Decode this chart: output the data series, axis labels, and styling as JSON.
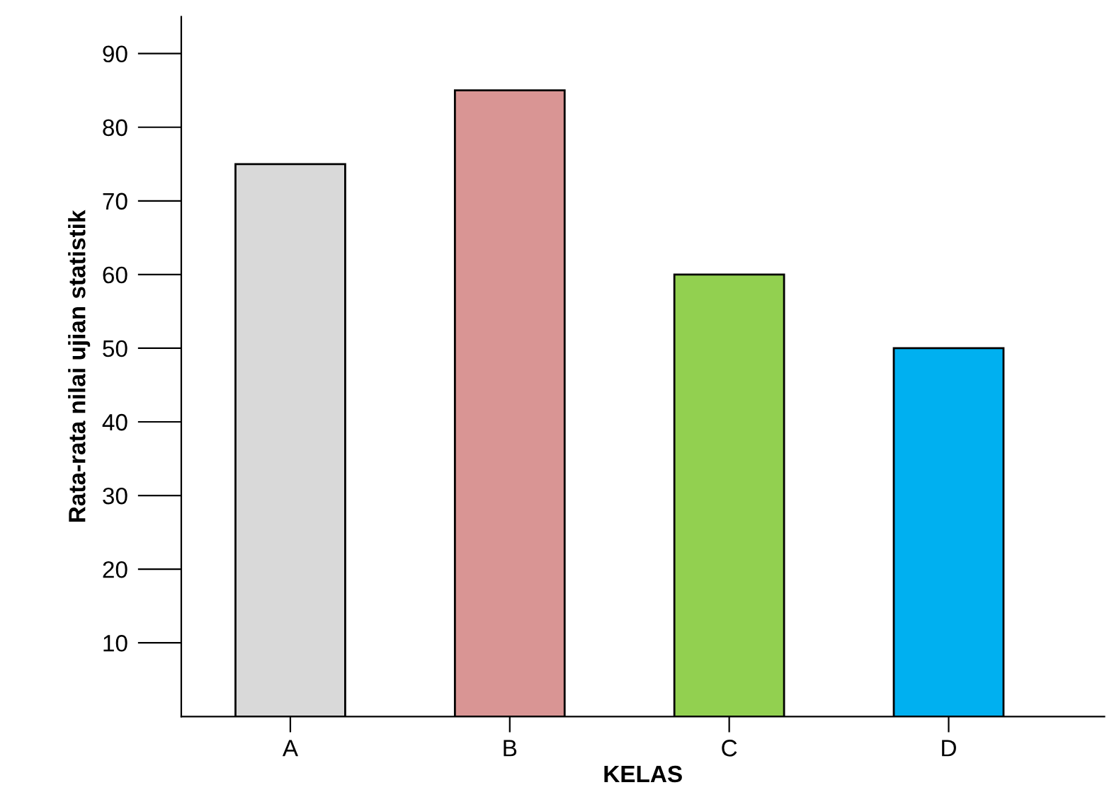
{
  "chart_data": {
    "type": "bar",
    "xlabel": "KELAS",
    "ylabel": "Rata-rata nilai ujian statistik",
    "categories": [
      "A",
      "B",
      "C",
      "D"
    ],
    "values": [
      75,
      85,
      60,
      50
    ],
    "colors": [
      "#d9d9d9",
      "#d99594",
      "#92d050",
      "#00b0f0"
    ],
    "ylim": [
      0,
      95
    ],
    "yticks": [
      10,
      20,
      30,
      40,
      50,
      60,
      70,
      80,
      90
    ],
    "grid": false,
    "legend": false
  }
}
